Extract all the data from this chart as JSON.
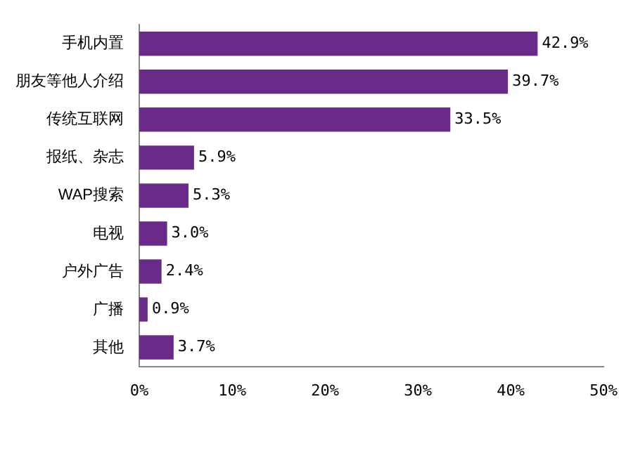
{
  "chart_data": {
    "type": "bar",
    "orientation": "horizontal",
    "categories": [
      "手机内置",
      "朋友等他人介绍",
      "传统互联网",
      "报纸、杂志",
      "WAP搜索",
      "电视",
      "户外广告",
      "广播",
      "其他"
    ],
    "values": [
      42.9,
      39.7,
      33.5,
      5.9,
      5.3,
      3.0,
      2.4,
      0.9,
      3.7
    ],
    "value_labels": [
      "42.9%",
      "39.7%",
      "33.5%",
      "5.9%",
      "5.3%",
      "3.0%",
      "2.4%",
      "0.9%",
      "3.7%"
    ],
    "color": "#6a2a8a",
    "xlim": [
      0,
      50
    ],
    "xticks": [
      {
        "value": 0,
        "label": "0%"
      },
      {
        "value": 10,
        "label": "10%"
      },
      {
        "value": 20,
        "label": "20%"
      },
      {
        "value": 30,
        "label": "30%"
      },
      {
        "value": 40,
        "label": "40%"
      },
      {
        "value": 50,
        "label": "50%"
      }
    ],
    "grid": false,
    "legend": false
  }
}
